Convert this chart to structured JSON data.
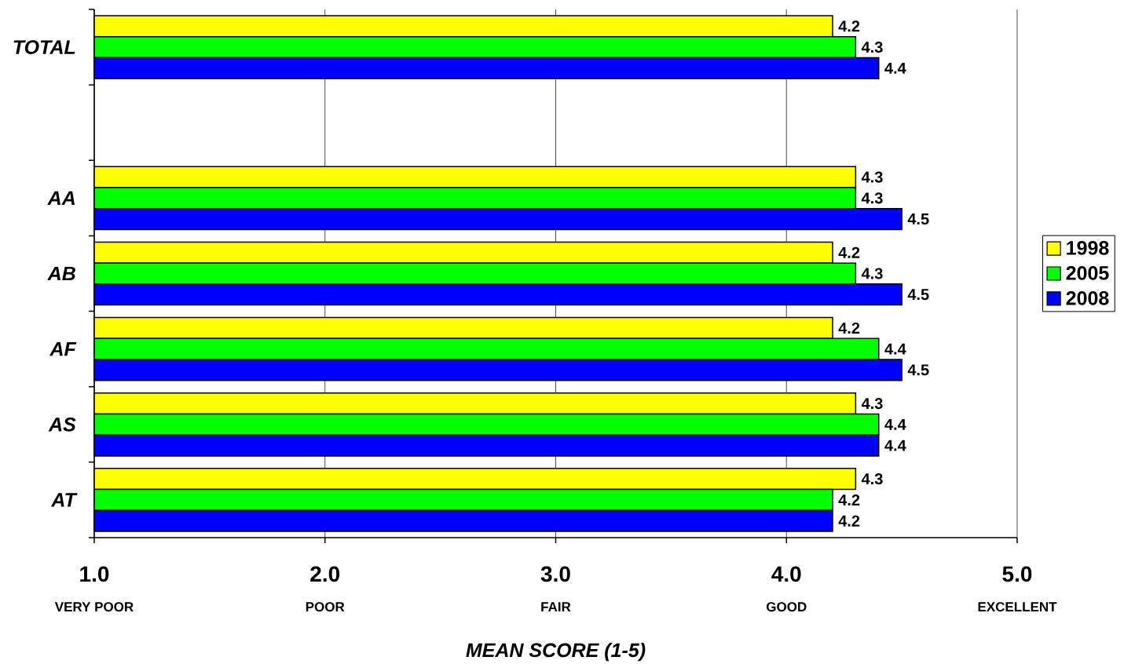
{
  "chart_data": {
    "type": "bar",
    "orientation": "horizontal",
    "xlabel": "MEAN SCORE (1-5)",
    "categories": [
      "TOTAL",
      null,
      "AA",
      "AB",
      "AF",
      "AS",
      "AT"
    ],
    "series": [
      {
        "name": "1998",
        "color": "#ffff00",
        "values": [
          4.2,
          null,
          4.3,
          4.2,
          4.2,
          4.3,
          4.3
        ]
      },
      {
        "name": "2005",
        "color": "#00ff00",
        "values": [
          4.3,
          null,
          4.3,
          4.3,
          4.4,
          4.4,
          4.2
        ]
      },
      {
        "name": "2008",
        "color": "#0000ff",
        "values": [
          4.4,
          null,
          4.5,
          4.5,
          4.5,
          4.4,
          4.2
        ]
      }
    ],
    "xlim": [
      1,
      5
    ],
    "xticks": [
      {
        "value": 1,
        "label": "1.0"
      },
      {
        "value": 2,
        "label": "2.0"
      },
      {
        "value": 3,
        "label": "3.0"
      },
      {
        "value": 4,
        "label": "4.0"
      },
      {
        "value": 5,
        "label": "5.0"
      }
    ],
    "annotations": [
      "VERY POOR",
      "POOR",
      "FAIR",
      "GOOD",
      "EXCELLENT"
    ],
    "data_labels": true,
    "grid": "x",
    "legend": "right"
  }
}
